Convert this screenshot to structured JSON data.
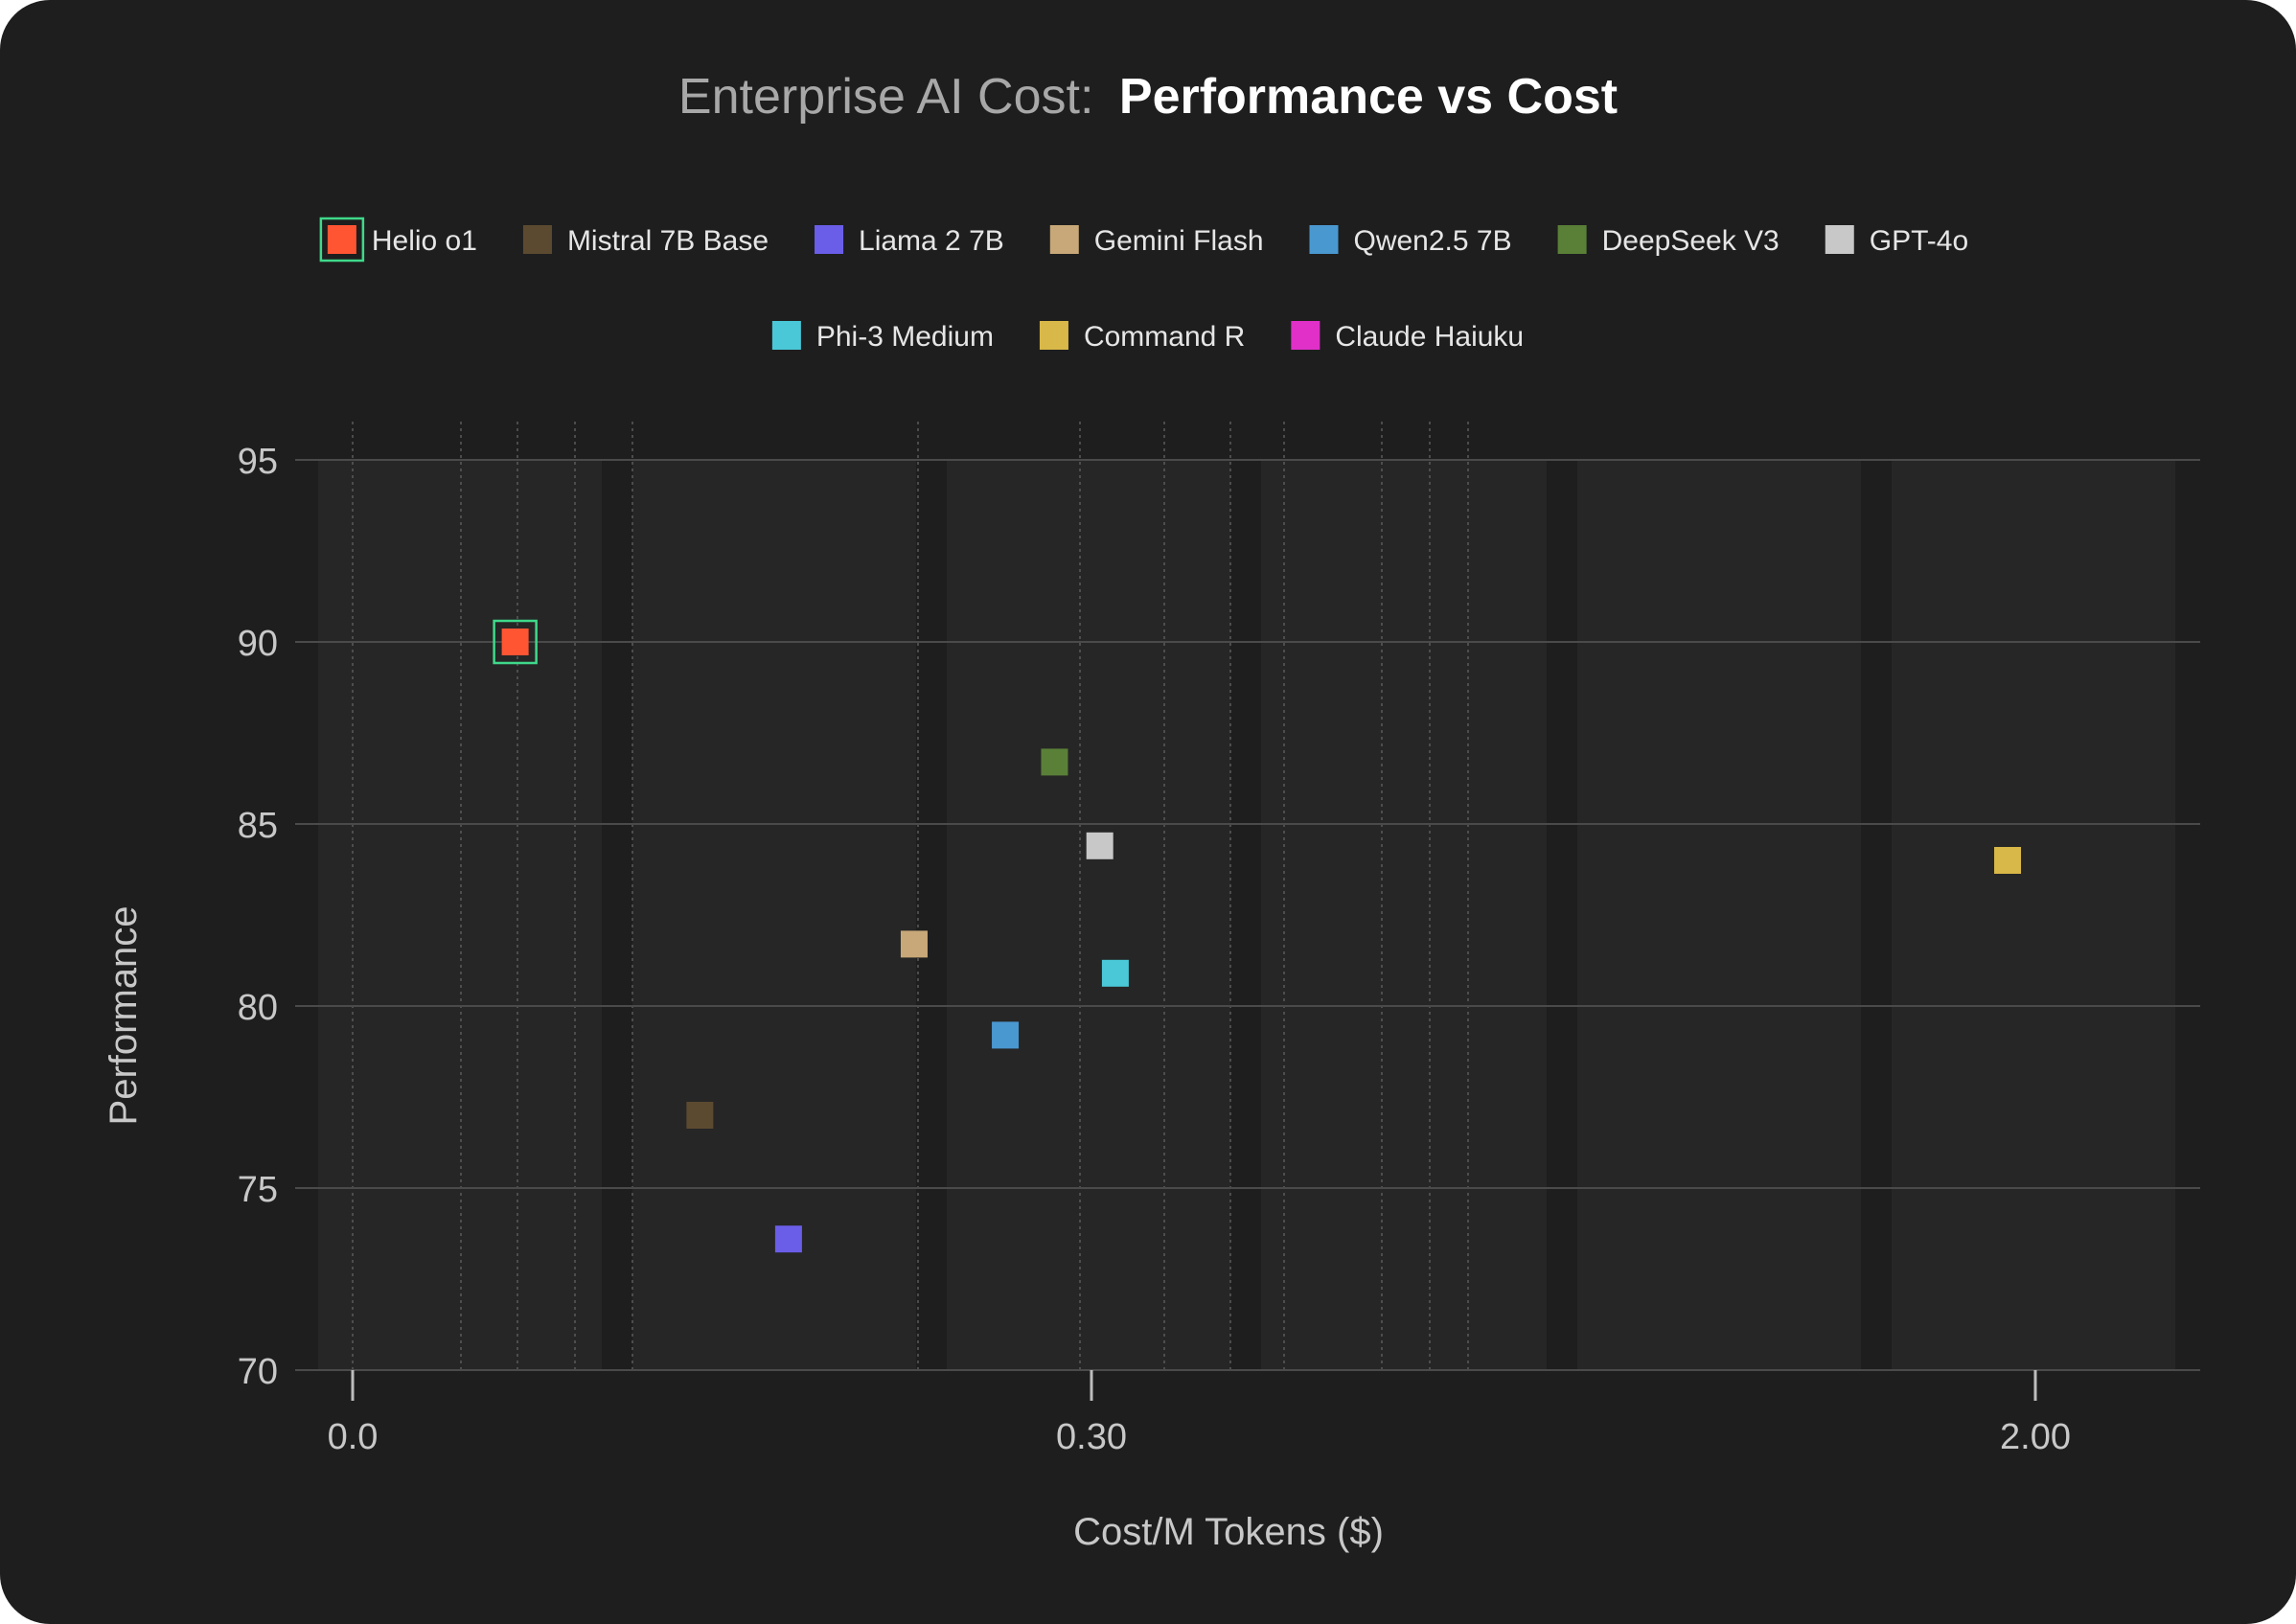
{
  "title": {
    "prefix": "Enterprise AI Cost:",
    "main": "Performance vs Cost"
  },
  "colors": {
    "background": "#1e1e1e",
    "grid": "#4a4a4a",
    "text": "#c8c8c8",
    "title_prefix": "#a8a8a8",
    "title_main": "#ffffff",
    "highlight": "#3fd98a"
  },
  "chart_data": {
    "type": "scatter",
    "xlabel": "Cost/M Tokens ($)",
    "ylabel": "Performance",
    "ylim": [
      70,
      95
    ],
    "yticks": [
      95,
      90,
      85,
      80,
      75,
      70
    ],
    "xticks": [
      {
        "value": 0.0,
        "label": "0.0"
      },
      {
        "value": 0.3,
        "label": "0.30"
      },
      {
        "value": 2.0,
        "label": "2.00"
      }
    ],
    "x_scale": "nonlinear (0.0, 0.30, 2.00 shown as ticks)",
    "legend_position": "top",
    "highlighted_series": "Helio o1",
    "series": [
      {
        "name": "Helio o1",
        "color": "#ff5533",
        "x": 0.066,
        "y": 90.0
      },
      {
        "name": "Mistral 7B Base",
        "color": "#5c4a30",
        "x": 0.141,
        "y": 77.0
      },
      {
        "name": "Liama 2 7B",
        "color": "#6a5ee8",
        "x": 0.177,
        "y": 73.6
      },
      {
        "name": "Gemini Flash",
        "color": "#c8a878",
        "x": 0.228,
        "y": 81.7
      },
      {
        "name": "Qwen2.5 7B",
        "color": "#4a98d0",
        "x": 0.265,
        "y": 79.2
      },
      {
        "name": "DeepSeek V3",
        "color": "#5a8038",
        "x": 0.285,
        "y": 86.7
      },
      {
        "name": "GPT-4o",
        "color": "#c8c8c8",
        "x": 0.315,
        "y": 84.4
      },
      {
        "name": "Phi-3 Medium",
        "color": "#4ac8d8",
        "x": 0.343,
        "y": 80.9
      },
      {
        "name": "Command R",
        "color": "#d8b848",
        "x": 1.95,
        "y": 84.0
      },
      {
        "name": "Claude Haiuku",
        "color": "#e030c8",
        "x": null,
        "y": null
      }
    ]
  }
}
